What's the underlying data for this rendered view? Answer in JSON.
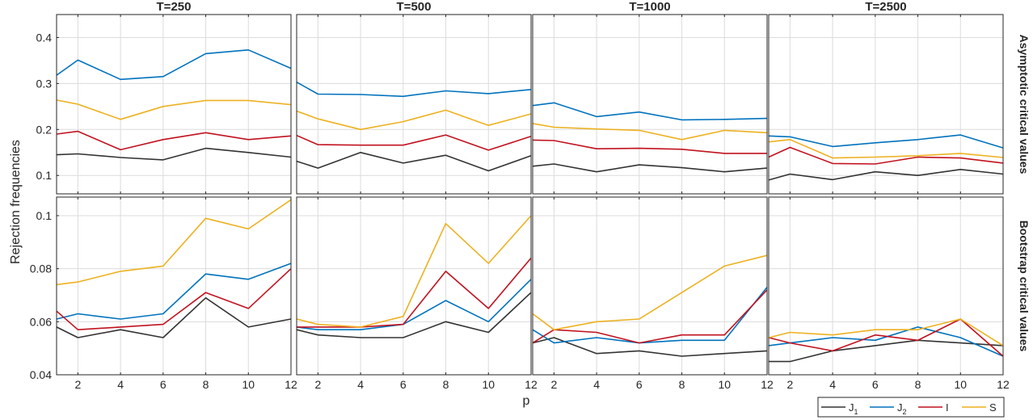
{
  "colors": {
    "J1": "#333333",
    "J2": "#0072BD",
    "I": "#C1121F",
    "S": "#EDB120",
    "grid": "#dcdcdc",
    "axis": "#262626"
  },
  "chart_data": {
    "type": "line",
    "panel_titles": [
      "T=250",
      "T=500",
      "T=1000",
      "T=2500"
    ],
    "row_labels": [
      "Asymptotic critical values",
      "Bootstrap critical values"
    ],
    "xlabel": "p",
    "ylabel": "Rejection frequencies",
    "x": [
      1,
      2,
      4,
      6,
      8,
      10,
      12
    ],
    "xlim": [
      1,
      12
    ],
    "xticks": [
      "2",
      "4",
      "6",
      "8",
      "10",
      "12"
    ],
    "rows": [
      {
        "ylim": [
          0.06,
          0.45
        ],
        "yticks": [
          "0.1",
          "0.2",
          "0.3",
          "0.4"
        ],
        "ytick_values": [
          0.1,
          0.2,
          0.3,
          0.4
        ],
        "panels": [
          {
            "series": [
              {
                "name": "J1",
                "values": [
                  0.145,
                  0.147,
                  0.139,
                  0.134,
                  0.159,
                  0.15,
                  0.14
                ]
              },
              {
                "name": "J2",
                "values": [
                  0.318,
                  0.351,
                  0.309,
                  0.315,
                  0.365,
                  0.373,
                  0.333
                ]
              },
              {
                "name": "I",
                "values": [
                  0.19,
                  0.196,
                  0.156,
                  0.178,
                  0.193,
                  0.178,
                  0.186
                ]
              },
              {
                "name": "S",
                "values": [
                  0.264,
                  0.255,
                  0.222,
                  0.25,
                  0.263,
                  0.263,
                  0.254
                ]
              }
            ]
          },
          {
            "series": [
              {
                "name": "J1",
                "values": [
                  0.131,
                  0.116,
                  0.15,
                  0.127,
                  0.144,
                  0.11,
                  0.143
                ]
              },
              {
                "name": "J2",
                "values": [
                  0.303,
                  0.277,
                  0.276,
                  0.272,
                  0.284,
                  0.278,
                  0.287
                ]
              },
              {
                "name": "I",
                "values": [
                  0.187,
                  0.167,
                  0.166,
                  0.166,
                  0.188,
                  0.155,
                  0.185
                ]
              },
              {
                "name": "S",
                "values": [
                  0.24,
                  0.223,
                  0.2,
                  0.217,
                  0.242,
                  0.209,
                  0.234
                ]
              }
            ]
          },
          {
            "series": [
              {
                "name": "J1",
                "values": [
                  0.12,
                  0.125,
                  0.108,
                  0.123,
                  0.117,
                  0.108,
                  0.116
                ]
              },
              {
                "name": "J2",
                "values": [
                  0.252,
                  0.258,
                  0.228,
                  0.238,
                  0.221,
                  0.222,
                  0.224
                ]
              },
              {
                "name": "I",
                "values": [
                  0.177,
                  0.176,
                  0.158,
                  0.159,
                  0.157,
                  0.148,
                  0.148
                ]
              },
              {
                "name": "S",
                "values": [
                  0.213,
                  0.205,
                  0.201,
                  0.198,
                  0.178,
                  0.198,
                  0.193
                ]
              }
            ]
          },
          {
            "series": [
              {
                "name": "J1",
                "values": [
                  0.09,
                  0.103,
                  0.091,
                  0.108,
                  0.1,
                  0.113,
                  0.103
                ]
              },
              {
                "name": "J2",
                "values": [
                  0.186,
                  0.184,
                  0.163,
                  0.171,
                  0.178,
                  0.188,
                  0.16
                ]
              },
              {
                "name": "I",
                "values": [
                  0.14,
                  0.161,
                  0.126,
                  0.125,
                  0.14,
                  0.138,
                  0.127
                ]
              },
              {
                "name": "S",
                "values": [
                  0.173,
                  0.178,
                  0.138,
                  0.14,
                  0.143,
                  0.148,
                  0.139
                ]
              }
            ]
          }
        ]
      },
      {
        "ylim": [
          0.04,
          0.107
        ],
        "yticks": [
          "0.04",
          "0.06",
          "0.08",
          "0.1"
        ],
        "ytick_values": [
          0.04,
          0.06,
          0.08,
          0.1
        ],
        "panels": [
          {
            "series": [
              {
                "name": "J1",
                "values": [
                  0.058,
                  0.054,
                  0.057,
                  0.054,
                  0.069,
                  0.058,
                  0.061
                ]
              },
              {
                "name": "J2",
                "values": [
                  0.061,
                  0.063,
                  0.061,
                  0.063,
                  0.078,
                  0.076,
                  0.082
                ]
              },
              {
                "name": "I",
                "values": [
                  0.064,
                  0.057,
                  0.058,
                  0.059,
                  0.071,
                  0.065,
                  0.08
                ]
              },
              {
                "name": "S",
                "values": [
                  0.074,
                  0.075,
                  0.079,
                  0.081,
                  0.099,
                  0.095,
                  0.106
                ]
              }
            ]
          },
          {
            "series": [
              {
                "name": "J1",
                "values": [
                  0.057,
                  0.055,
                  0.054,
                  0.054,
                  0.06,
                  0.056,
                  0.071
                ]
              },
              {
                "name": "J2",
                "values": [
                  0.058,
                  0.057,
                  0.057,
                  0.059,
                  0.068,
                  0.06,
                  0.076
                ]
              },
              {
                "name": "I",
                "values": [
                  0.058,
                  0.058,
                  0.058,
                  0.059,
                  0.079,
                  0.065,
                  0.084
                ]
              },
              {
                "name": "S",
                "values": [
                  0.061,
                  0.059,
                  0.058,
                  0.062,
                  0.097,
                  0.082,
                  0.1
                ]
              }
            ]
          },
          {
            "series": [
              {
                "name": "J1",
                "values": [
                  0.052,
                  0.054,
                  0.048,
                  0.049,
                  0.047,
                  0.048,
                  0.049
                ]
              },
              {
                "name": "J2",
                "values": [
                  0.057,
                  0.052,
                  0.054,
                  0.052,
                  0.053,
                  0.053,
                  0.073
                ]
              },
              {
                "name": "I",
                "values": [
                  0.052,
                  0.057,
                  0.056,
                  0.052,
                  0.055,
                  0.055,
                  0.072
                ]
              },
              {
                "name": "S",
                "values": [
                  0.063,
                  0.057,
                  0.06,
                  0.061,
                  0.071,
                  0.081,
                  0.085
                ]
              }
            ]
          },
          {
            "series": [
              {
                "name": "J1",
                "values": [
                  0.045,
                  0.045,
                  0.049,
                  0.051,
                  0.053,
                  0.052,
                  0.051
                ]
              },
              {
                "name": "J2",
                "values": [
                  0.051,
                  0.052,
                  0.054,
                  0.053,
                  0.058,
                  0.054,
                  0.047
                ]
              },
              {
                "name": "I",
                "values": [
                  0.054,
                  0.052,
                  0.049,
                  0.055,
                  0.053,
                  0.061,
                  0.047
                ]
              },
              {
                "name": "S",
                "values": [
                  0.054,
                  0.056,
                  0.055,
                  0.057,
                  0.057,
                  0.061,
                  0.051
                ]
              }
            ]
          }
        ]
      }
    ],
    "legend": {
      "placement": "bottom-right",
      "entries": [
        {
          "key": "J1",
          "base": "J",
          "sub": "1"
        },
        {
          "key": "J2",
          "base": "J",
          "sub": "2"
        },
        {
          "key": "I",
          "base": "I",
          "sub": ""
        },
        {
          "key": "S",
          "base": "S",
          "sub": ""
        }
      ]
    },
    "grid": true
  }
}
